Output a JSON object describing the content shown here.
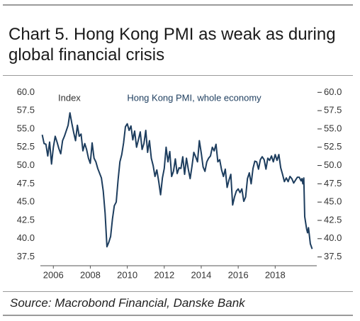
{
  "chart_data": {
    "type": "line",
    "title": "Chart 5. Hong Kong PMI as weak as during global financial crisis",
    "y_label": "Index",
    "source": "Source: Macrobond Financial, Danske Bank",
    "x": [
      2005.4,
      2005.5,
      2005.6,
      2005.7,
      2005.8,
      2005.9,
      2006.0,
      2006.1,
      2006.2,
      2006.3,
      2006.4,
      2006.5,
      2006.6,
      2006.8,
      2006.9,
      2007.0,
      2007.1,
      2007.2,
      2007.3,
      2007.4,
      2007.5,
      2007.6,
      2007.7,
      2007.8,
      2007.9,
      2008.0,
      2008.1,
      2008.2,
      2008.3,
      2008.4,
      2008.6,
      2008.7,
      2008.8,
      2008.9,
      2009.0,
      2009.1,
      2009.2,
      2009.3,
      2009.4,
      2009.5,
      2009.6,
      2009.7,
      2009.8,
      2009.9,
      2010.0,
      2010.1,
      2010.2,
      2010.3,
      2010.4,
      2010.5,
      2010.6,
      2010.7,
      2010.8,
      2010.9,
      2011.0,
      2011.1,
      2011.2,
      2011.3,
      2011.4,
      2011.5,
      2011.6,
      2011.7,
      2011.8,
      2011.9,
      2012.0,
      2012.1,
      2012.2,
      2012.3,
      2012.4,
      2012.5,
      2012.6,
      2012.7,
      2012.8,
      2012.9,
      2013.0,
      2013.1,
      2013.2,
      2013.3,
      2013.4,
      2013.5,
      2013.6,
      2013.7,
      2013.8,
      2013.9,
      2014.0,
      2014.1,
      2014.2,
      2014.3,
      2014.4,
      2014.5,
      2014.6,
      2014.7,
      2014.8,
      2014.9,
      2015.0,
      2015.1,
      2015.2,
      2015.3,
      2015.4,
      2015.5,
      2015.6,
      2015.7,
      2015.8,
      2015.9,
      2016.0,
      2016.1,
      2016.2,
      2016.3,
      2016.4,
      2016.5,
      2016.6,
      2016.7,
      2016.8,
      2016.9,
      2017.0,
      2017.1,
      2017.2,
      2017.3,
      2017.4,
      2017.5,
      2017.6,
      2017.7,
      2017.8,
      2017.9,
      2018.0,
      2018.1,
      2018.2,
      2018.3,
      2018.4,
      2018.5,
      2018.6,
      2018.7,
      2018.8,
      2018.9,
      2019.0,
      2019.1,
      2019.2,
      2019.3,
      2019.4,
      2019.45,
      2019.5,
      2019.55,
      2019.6,
      2019.7,
      2019.75,
      2019.8,
      2019.9,
      2020.0
    ],
    "series": [
      {
        "name": "Hong Kong PMI, whole economy",
        "color": "#1d3d5e",
        "values": [
          54.2,
          53,
          52.9,
          51.3,
          53.2,
          50.2,
          52.5,
          54,
          53.2,
          52.3,
          51.6,
          53.4,
          54,
          55.5,
          57.2,
          55.8,
          54.5,
          53.4,
          55.5,
          54,
          54.3,
          52,
          53,
          52.2,
          51,
          50.3,
          53.1,
          51,
          50.5,
          49.6,
          48.3,
          46.5,
          43.5,
          38.9,
          39.5,
          40.3,
          42.7,
          44.5,
          45,
          48,
          50.5,
          51.5,
          53.1,
          55.3,
          55.7,
          54.8,
          55.4,
          53.5,
          54.7,
          52.5,
          53.5,
          54.6,
          52.2,
          53,
          54.8,
          51.8,
          53.4,
          51,
          50,
          48.5,
          49.4,
          47.8,
          46,
          48.3,
          49.6,
          52.5,
          50.5,
          51.9,
          48.5,
          49.2,
          50.9,
          48.9,
          49.7,
          49.6,
          51.2,
          48.8,
          51,
          49.5,
          48.2,
          49.9,
          51.8,
          51.2,
          50.5,
          53.4,
          51.7,
          49.8,
          49.2,
          50.5,
          51,
          51.3,
          52.5,
          52,
          52.9,
          50.5,
          50.8,
          49.4,
          48.5,
          49.5,
          47,
          48,
          48.8,
          44.6,
          45.7,
          46.5,
          46.8,
          46.3,
          46.8,
          45.1,
          45.7,
          48.2,
          49,
          47.5,
          49.6,
          50.6,
          50.5,
          49.5,
          50.8,
          51.2,
          50.8,
          49.5,
          51,
          50.7,
          51.3,
          50.5,
          51.5,
          50.7,
          51.5,
          49.7,
          48.8,
          47.8,
          48.3,
          47.8,
          48.5,
          48.2,
          47.6,
          48,
          48.4,
          48.4,
          47.9,
          48.2,
          47.5,
          48.3,
          43,
          41.3,
          40.8,
          41.5,
          39.3,
          38.6
        ]
      }
    ],
    "xlim": [
      2005.3,
      2020.25
    ],
    "xticks": [
      2006,
      2008,
      2010,
      2012,
      2014,
      2016,
      2018
    ],
    "ylim": [
      36.3,
      61
    ],
    "yticks": [
      {
        "value": 60,
        "label": "60.0"
      },
      57.5,
      {
        "value": 55,
        "label": "55.0"
      },
      52.5,
      {
        "value": 50,
        "label": "50.0"
      },
      47.5,
      {
        "value": 45,
        "label": "45.0"
      },
      42.5,
      {
        "value": 40,
        "label": "40.0"
      },
      37.5
    ],
    "grid": false
  }
}
